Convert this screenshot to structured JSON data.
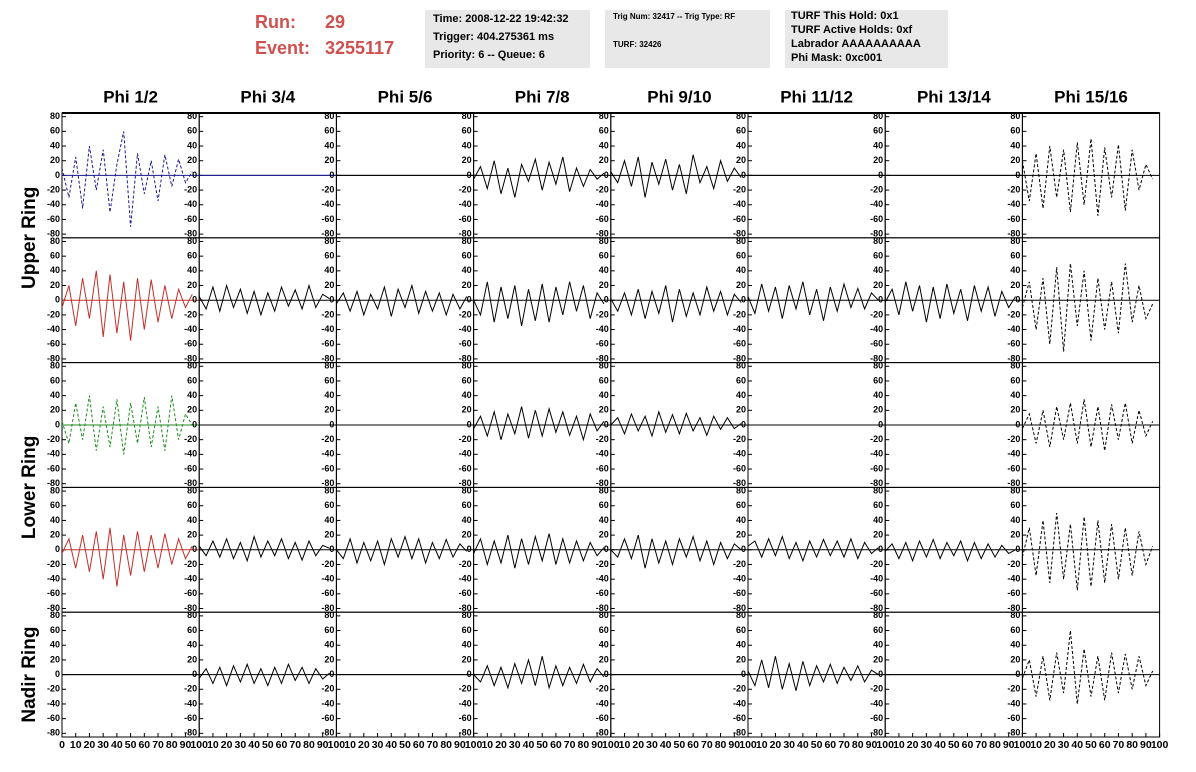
{
  "header": {
    "run_label": "Run:",
    "run": "29",
    "event_label": "Event:",
    "event": "3255117",
    "box1": [
      "Time: 2008-12-22 19:42:32",
      "Trigger: 404.275361 ms",
      "Priority: 6 -- Queue: 6"
    ],
    "box2": [
      "Trig Num: 32417 -- Trig Type: RF",
      "TURF: 32426"
    ],
    "box3": [
      "TURF This Hold: 0x1",
      "TURF Active Holds: 0xf",
      "Labrador AAAAAAAAAA",
      "Phi Mask: 0xc001"
    ]
  },
  "chart_data": {
    "type": "line",
    "columns": [
      "Phi 1/2",
      "Phi 3/4",
      "Phi 5/6",
      "Phi 7/8",
      "Phi 9/10",
      "Phi 11/12",
      "Phi 13/14",
      "Phi 15/16"
    ],
    "ring_labels": [
      "Upper Ring",
      "Lower Ring",
      "Nadir Ring"
    ],
    "ylim": [
      -85,
      85
    ],
    "yticks": [
      -80,
      -60,
      -40,
      -20,
      0,
      20,
      40,
      60,
      80
    ],
    "xlim": [
      0,
      100
    ],
    "xticks": [
      0,
      10,
      20,
      30,
      40,
      50,
      60,
      70,
      80,
      90,
      100
    ],
    "panels": [
      [
        {
          "color": "#1a1a8c",
          "dashed": true,
          "values": [
            10,
            -30,
            25,
            -45,
            40,
            -20,
            35,
            -50,
            15,
            60,
            -70,
            30,
            -25,
            20,
            -35,
            28,
            -15,
            22,
            -10,
            5
          ]
        },
        {
          "color": "#1a1a8c",
          "dashed": false,
          "values": [
            0,
            0
          ]
        },
        {
          "color": "#000000",
          "dashed": false,
          "values": [
            0,
            0
          ]
        },
        {
          "color": "#000000",
          "dashed": false,
          "values": [
            -5,
            12,
            -18,
            20,
            -25,
            10,
            -30,
            15,
            -8,
            22,
            -20,
            18,
            -12,
            25,
            -22,
            10,
            -15,
            8,
            -5,
            3
          ]
        },
        {
          "color": "#000000",
          "dashed": false,
          "values": [
            5,
            -10,
            20,
            -15,
            25,
            -30,
            18,
            -12,
            22,
            -20,
            15,
            -25,
            28,
            -10,
            12,
            -18,
            20,
            -8,
            10,
            -3
          ]
        },
        {
          "color": "#000000",
          "dashed": false,
          "values": [
            0,
            0
          ]
        },
        {
          "color": "#000000",
          "dashed": false,
          "values": [
            0,
            0
          ]
        },
        {
          "color": "#000000",
          "dashed": true,
          "values": [
            20,
            -35,
            30,
            -45,
            40,
            -30,
            35,
            -50,
            45,
            -40,
            50,
            -55,
            38,
            -30,
            42,
            -48,
            35,
            -20,
            15,
            -5
          ]
        }
      ],
      [
        {
          "color": "#c0302c",
          "dashed": false,
          "values": [
            -10,
            20,
            -35,
            30,
            -25,
            40,
            -50,
            35,
            -45,
            25,
            -55,
            30,
            -40,
            28,
            -30,
            20,
            -25,
            15,
            -10,
            8
          ]
        },
        {
          "color": "#000000",
          "dashed": false,
          "values": [
            5,
            -12,
            18,
            -15,
            20,
            -10,
            15,
            -18,
            12,
            -20,
            10,
            -15,
            18,
            -8,
            14,
            -12,
            20,
            -10,
            8,
            2
          ]
        },
        {
          "color": "#000000",
          "dashed": false,
          "values": [
            -5,
            10,
            -15,
            12,
            -20,
            8,
            -12,
            18,
            -22,
            15,
            -10,
            20,
            -18,
            12,
            -15,
            10,
            -20,
            8,
            -12,
            5
          ]
        },
        {
          "color": "#000000",
          "dashed": false,
          "values": [
            0,
            -20,
            25,
            -30,
            18,
            -25,
            20,
            -35,
            15,
            -28,
            22,
            -30,
            18,
            -20,
            25,
            -15,
            20,
            -25,
            10,
            -5
          ]
        },
        {
          "color": "#000000",
          "dashed": false,
          "values": [
            2,
            -15,
            10,
            -20,
            15,
            -25,
            12,
            -18,
            20,
            -30,
            15,
            -22,
            10,
            -20,
            18,
            -15,
            12,
            -20,
            8,
            -3
          ]
        },
        {
          "color": "#000000",
          "dashed": false,
          "values": [
            5,
            -18,
            22,
            -15,
            18,
            -25,
            20,
            -12,
            25,
            -20,
            15,
            -28,
            18,
            -15,
            22,
            -10,
            16,
            -12,
            10,
            0
          ]
        },
        {
          "color": "#000000",
          "dashed": false,
          "values": [
            -3,
            15,
            -20,
            25,
            -15,
            20,
            -30,
            18,
            -25,
            22,
            -18,
            15,
            -28,
            20,
            -15,
            18,
            -22,
            12,
            -10,
            5
          ]
        },
        {
          "color": "#000000",
          "dashed": true,
          "values": [
            -10,
            25,
            -40,
            30,
            -60,
            45,
            -70,
            50,
            -35,
            40,
            -55,
            30,
            -40,
            25,
            -45,
            50,
            -30,
            20,
            -25,
            -5
          ]
        }
      ],
      [
        {
          "color": "#1f8a1f",
          "dashed": true,
          "values": [
            5,
            -25,
            30,
            -20,
            40,
            -35,
            25,
            -30,
            35,
            -40,
            30,
            -25,
            38,
            -30,
            25,
            -35,
            40,
            -20,
            15,
            0
          ]
        },
        {
          "color": "#000000",
          "dashed": false,
          "values": [
            0,
            0
          ]
        },
        {
          "color": "#000000",
          "dashed": false,
          "values": [
            0,
            0
          ]
        },
        {
          "color": "#000000",
          "dashed": false,
          "values": [
            -5,
            12,
            -15,
            18,
            -20,
            15,
            -12,
            25,
            -18,
            20,
            -15,
            22,
            -10,
            18,
            -14,
            12,
            -20,
            15,
            -8,
            5
          ]
        },
        {
          "color": "#000000",
          "dashed": false,
          "values": [
            0,
            10,
            -12,
            15,
            -8,
            12,
            -15,
            18,
            -10,
            14,
            -12,
            16,
            -8,
            10,
            -14,
            12,
            -6,
            10,
            -5,
            2
          ]
        },
        {
          "color": "#000000",
          "dashed": false,
          "values": [
            0,
            0
          ]
        },
        {
          "color": "#000000",
          "dashed": false,
          "values": [
            0,
            0
          ]
        },
        {
          "color": "#000000",
          "dashed": true,
          "values": [
            -5,
            15,
            -25,
            20,
            -30,
            25,
            -20,
            30,
            -25,
            35,
            -30,
            25,
            -35,
            28,
            -20,
            30,
            -25,
            20,
            -15,
            5
          ]
        }
      ],
      [
        {
          "color": "#c0302c",
          "dashed": false,
          "values": [
            -5,
            15,
            -25,
            20,
            -30,
            25,
            -40,
            30,
            -50,
            20,
            -35,
            25,
            -30,
            20,
            -25,
            22,
            -20,
            15,
            -12,
            5
          ]
        },
        {
          "color": "#000000",
          "dashed": false,
          "values": [
            5,
            -8,
            12,
            -10,
            15,
            -12,
            10,
            -15,
            18,
            -10,
            12,
            -8,
            15,
            -12,
            10,
            -14,
            12,
            -8,
            6,
            2
          ]
        },
        {
          "color": "#000000",
          "dashed": false,
          "values": [
            0,
            -12,
            15,
            -18,
            10,
            -15,
            12,
            -20,
            15,
            -10,
            18,
            -12,
            15,
            -18,
            10,
            -12,
            14,
            -10,
            8,
            -2
          ]
        },
        {
          "color": "#000000",
          "dashed": false,
          "values": [
            -5,
            15,
            -20,
            12,
            -18,
            20,
            -25,
            15,
            -20,
            18,
            -15,
            22,
            -20,
            15,
            -18,
            12,
            -15,
            10,
            -8,
            3
          ]
        },
        {
          "color": "#000000",
          "dashed": false,
          "values": [
            0,
            -10,
            15,
            -12,
            20,
            -25,
            15,
            -18,
            12,
            -20,
            15,
            -10,
            18,
            -15,
            12,
            -20,
            10,
            -12,
            8,
            0
          ]
        },
        {
          "color": "#000000",
          "dashed": false,
          "values": [
            5,
            12,
            -10,
            15,
            -8,
            18,
            -12,
            10,
            -15,
            12,
            -10,
            14,
            -8,
            12,
            -10,
            15,
            -12,
            10,
            -5,
            3
          ]
        },
        {
          "color": "#000000",
          "dashed": false,
          "values": [
            -2,
            8,
            -12,
            10,
            -15,
            12,
            -10,
            14,
            -12,
            10,
            -8,
            12,
            -15,
            10,
            -12,
            8,
            -10,
            6,
            -5,
            0
          ]
        },
        {
          "color": "#000000",
          "dashed": true,
          "values": [
            -10,
            30,
            -35,
            40,
            -45,
            50,
            -40,
            35,
            -55,
            45,
            -50,
            40,
            -45,
            35,
            -40,
            30,
            -35,
            25,
            -20,
            5
          ]
        }
      ],
      [
        {
          "color": "#000000",
          "dashed": false,
          "values": [
            0,
            0
          ]
        },
        {
          "color": "#000000",
          "dashed": false,
          "values": [
            -5,
            8,
            -12,
            10,
            -15,
            12,
            -10,
            14,
            -12,
            8,
            -15,
            10,
            -12,
            14,
            -8,
            10,
            -12,
            8,
            -6,
            2
          ]
        },
        {
          "color": "#000000",
          "dashed": false,
          "values": [
            0,
            0
          ]
        },
        {
          "color": "#000000",
          "dashed": false,
          "values": [
            0,
            -10,
            12,
            -15,
            10,
            -18,
            15,
            -12,
            20,
            -15,
            25,
            -18,
            12,
            -15,
            10,
            -12,
            14,
            -10,
            8,
            -3
          ]
        },
        {
          "color": "#000000",
          "dashed": false,
          "values": [
            0,
            0
          ]
        },
        {
          "color": "#000000",
          "dashed": false,
          "values": [
            5,
            -15,
            20,
            -18,
            25,
            -20,
            15,
            -22,
            18,
            -15,
            12,
            -10,
            14,
            -12,
            10,
            -8,
            12,
            -10,
            6,
            0
          ]
        },
        {
          "color": "#000000",
          "dashed": false,
          "values": [
            0,
            0
          ]
        },
        {
          "color": "#000000",
          "dashed": true,
          "values": [
            -5,
            20,
            -30,
            25,
            -35,
            30,
            -25,
            60,
            -40,
            35,
            -30,
            25,
            -35,
            30,
            -25,
            28,
            -20,
            25,
            -15,
            5
          ]
        }
      ]
    ]
  }
}
